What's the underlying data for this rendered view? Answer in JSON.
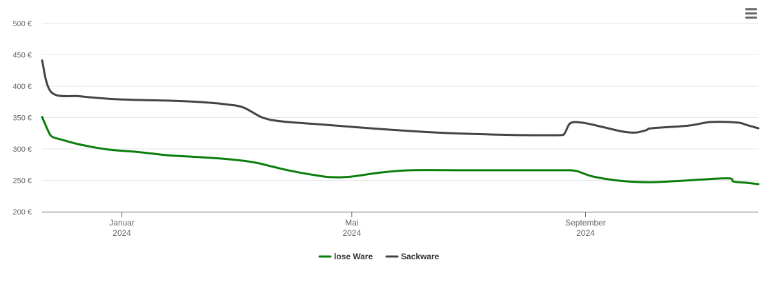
{
  "menu": {
    "icon": "hamburger-menu-icon"
  },
  "chart_data": {
    "type": "line",
    "title": "",
    "xlabel": "",
    "ylabel": "",
    "ylim": [
      200,
      500
    ],
    "y_ticks": [
      "200 €",
      "250 €",
      "300 €",
      "350 €",
      "400 €",
      "450 €",
      "500 €"
    ],
    "y_tick_values": [
      200,
      250,
      300,
      350,
      400,
      450,
      500
    ],
    "x_ticks": [
      {
        "month": "Januar",
        "year": "2024",
        "date": "2024-01-01"
      },
      {
        "month": "Mai",
        "year": "2024",
        "date": "2024-05-01"
      },
      {
        "month": "September",
        "year": "2024",
        "date": "2024-09-01"
      }
    ],
    "xlim": [
      "2023-11-20",
      "2024-12-01"
    ],
    "grid": true,
    "legend_position": "bottom-center",
    "series": [
      {
        "name": "lose Ware",
        "color": "#0a7d0a",
        "points": [
          [
            "2023-11-20",
            351
          ],
          [
            "2023-11-23",
            330
          ],
          [
            "2023-11-25",
            320
          ],
          [
            "2023-11-30",
            315
          ],
          [
            "2023-12-10",
            307
          ],
          [
            "2023-12-25",
            299
          ],
          [
            "2024-01-10",
            295
          ],
          [
            "2024-01-25",
            290
          ],
          [
            "2024-02-10",
            287
          ],
          [
            "2024-02-25",
            284
          ],
          [
            "2024-03-10",
            279
          ],
          [
            "2024-03-20",
            272
          ],
          [
            "2024-03-30",
            265
          ],
          [
            "2024-04-10",
            259
          ],
          [
            "2024-04-20",
            255
          ],
          [
            "2024-05-01",
            256
          ],
          [
            "2024-05-15",
            262
          ],
          [
            "2024-06-01",
            266
          ],
          [
            "2024-07-01",
            266
          ],
          [
            "2024-08-01",
            266
          ],
          [
            "2024-08-20",
            266
          ],
          [
            "2024-08-27",
            265
          ],
          [
            "2024-09-05",
            256
          ],
          [
            "2024-09-20",
            249
          ],
          [
            "2024-10-05",
            247
          ],
          [
            "2024-10-20",
            249
          ],
          [
            "2024-11-05",
            252
          ],
          [
            "2024-11-16",
            253
          ],
          [
            "2024-11-18",
            248
          ],
          [
            "2024-11-25",
            246
          ],
          [
            "2024-12-01",
            244
          ]
        ]
      },
      {
        "name": "Sackware",
        "color": "#434348",
        "points": [
          [
            "2023-11-20",
            441
          ],
          [
            "2023-11-25",
            390
          ],
          [
            "2023-12-10",
            384
          ],
          [
            "2023-12-25",
            380
          ],
          [
            "2024-01-10",
            378
          ],
          [
            "2024-01-25",
            377
          ],
          [
            "2024-02-10",
            375
          ],
          [
            "2024-02-25",
            371
          ],
          [
            "2024-03-05",
            366
          ],
          [
            "2024-03-15",
            350
          ],
          [
            "2024-03-25",
            344
          ],
          [
            "2024-04-15",
            339
          ],
          [
            "2024-05-15",
            332
          ],
          [
            "2024-06-15",
            326
          ],
          [
            "2024-07-15",
            323
          ],
          [
            "2024-08-01",
            322
          ],
          [
            "2024-08-18",
            322
          ],
          [
            "2024-08-21",
            325
          ],
          [
            "2024-08-24",
            341
          ],
          [
            "2024-08-30",
            342
          ],
          [
            "2024-09-10",
            335
          ],
          [
            "2024-09-20",
            328
          ],
          [
            "2024-09-27",
            326
          ],
          [
            "2024-10-03",
            330
          ],
          [
            "2024-10-06",
            333
          ],
          [
            "2024-10-25",
            337
          ],
          [
            "2024-11-06",
            343
          ],
          [
            "2024-11-20",
            342
          ],
          [
            "2024-11-25",
            338
          ],
          [
            "2024-12-01",
            333
          ]
        ]
      }
    ]
  }
}
